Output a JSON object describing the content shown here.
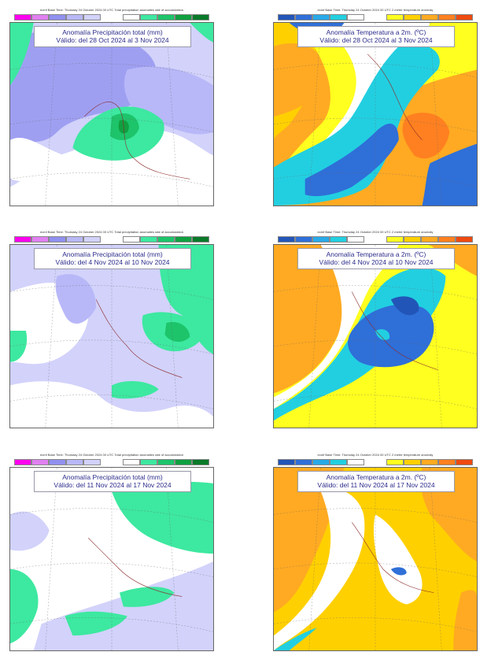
{
  "header_texts": {
    "precip": "ecmf  Base Time: Thursday 24 October 2024 00 UTC  Total precipitation anomalies rate of accumulation",
    "temp": "ecmf  Base Time: Thursday 24 October 2024 00 UTC  2 metre temperature anomaly"
  },
  "titles": {
    "precip": "Anomalía Precipitación total (mm)",
    "temp": "Anomalía Temperatura a 2m. (ºC)"
  },
  "periods": [
    "Válido: del 28 Oct 2024 al 3 Nov 2024",
    "Válido: del 4 Nov 2024 al 10 Nov 2024",
    "Válido: del 11 Nov 2024 al 17 Nov 2024"
  ],
  "colors": {
    "precip_scale": [
      "#f0e",
      "#e080f0",
      "#9090f0",
      "#b8b8f8",
      "#d2d2fb",
      "#ffffff",
      "#ffffff",
      "#3de8a0",
      "#1dc46a",
      "#10a040",
      "#0a7a2a"
    ],
    "temp_scale": [
      "#2255b8",
      "#2f6fd8",
      "#29a9e8",
      "#22cfe0",
      "#ffffff",
      "#ffffff",
      "#ffff20",
      "#ffd000",
      "#ffaa22",
      "#ff8020",
      "#ee4a10"
    ]
  },
  "panels": [
    {
      "kind": "precip",
      "row": 0
    },
    {
      "kind": "temp",
      "row": 0
    },
    {
      "kind": "precip",
      "row": 1
    },
    {
      "kind": "temp",
      "row": 1
    },
    {
      "kind": "precip",
      "row": 2
    },
    {
      "kind": "temp",
      "row": 2
    }
  ]
}
